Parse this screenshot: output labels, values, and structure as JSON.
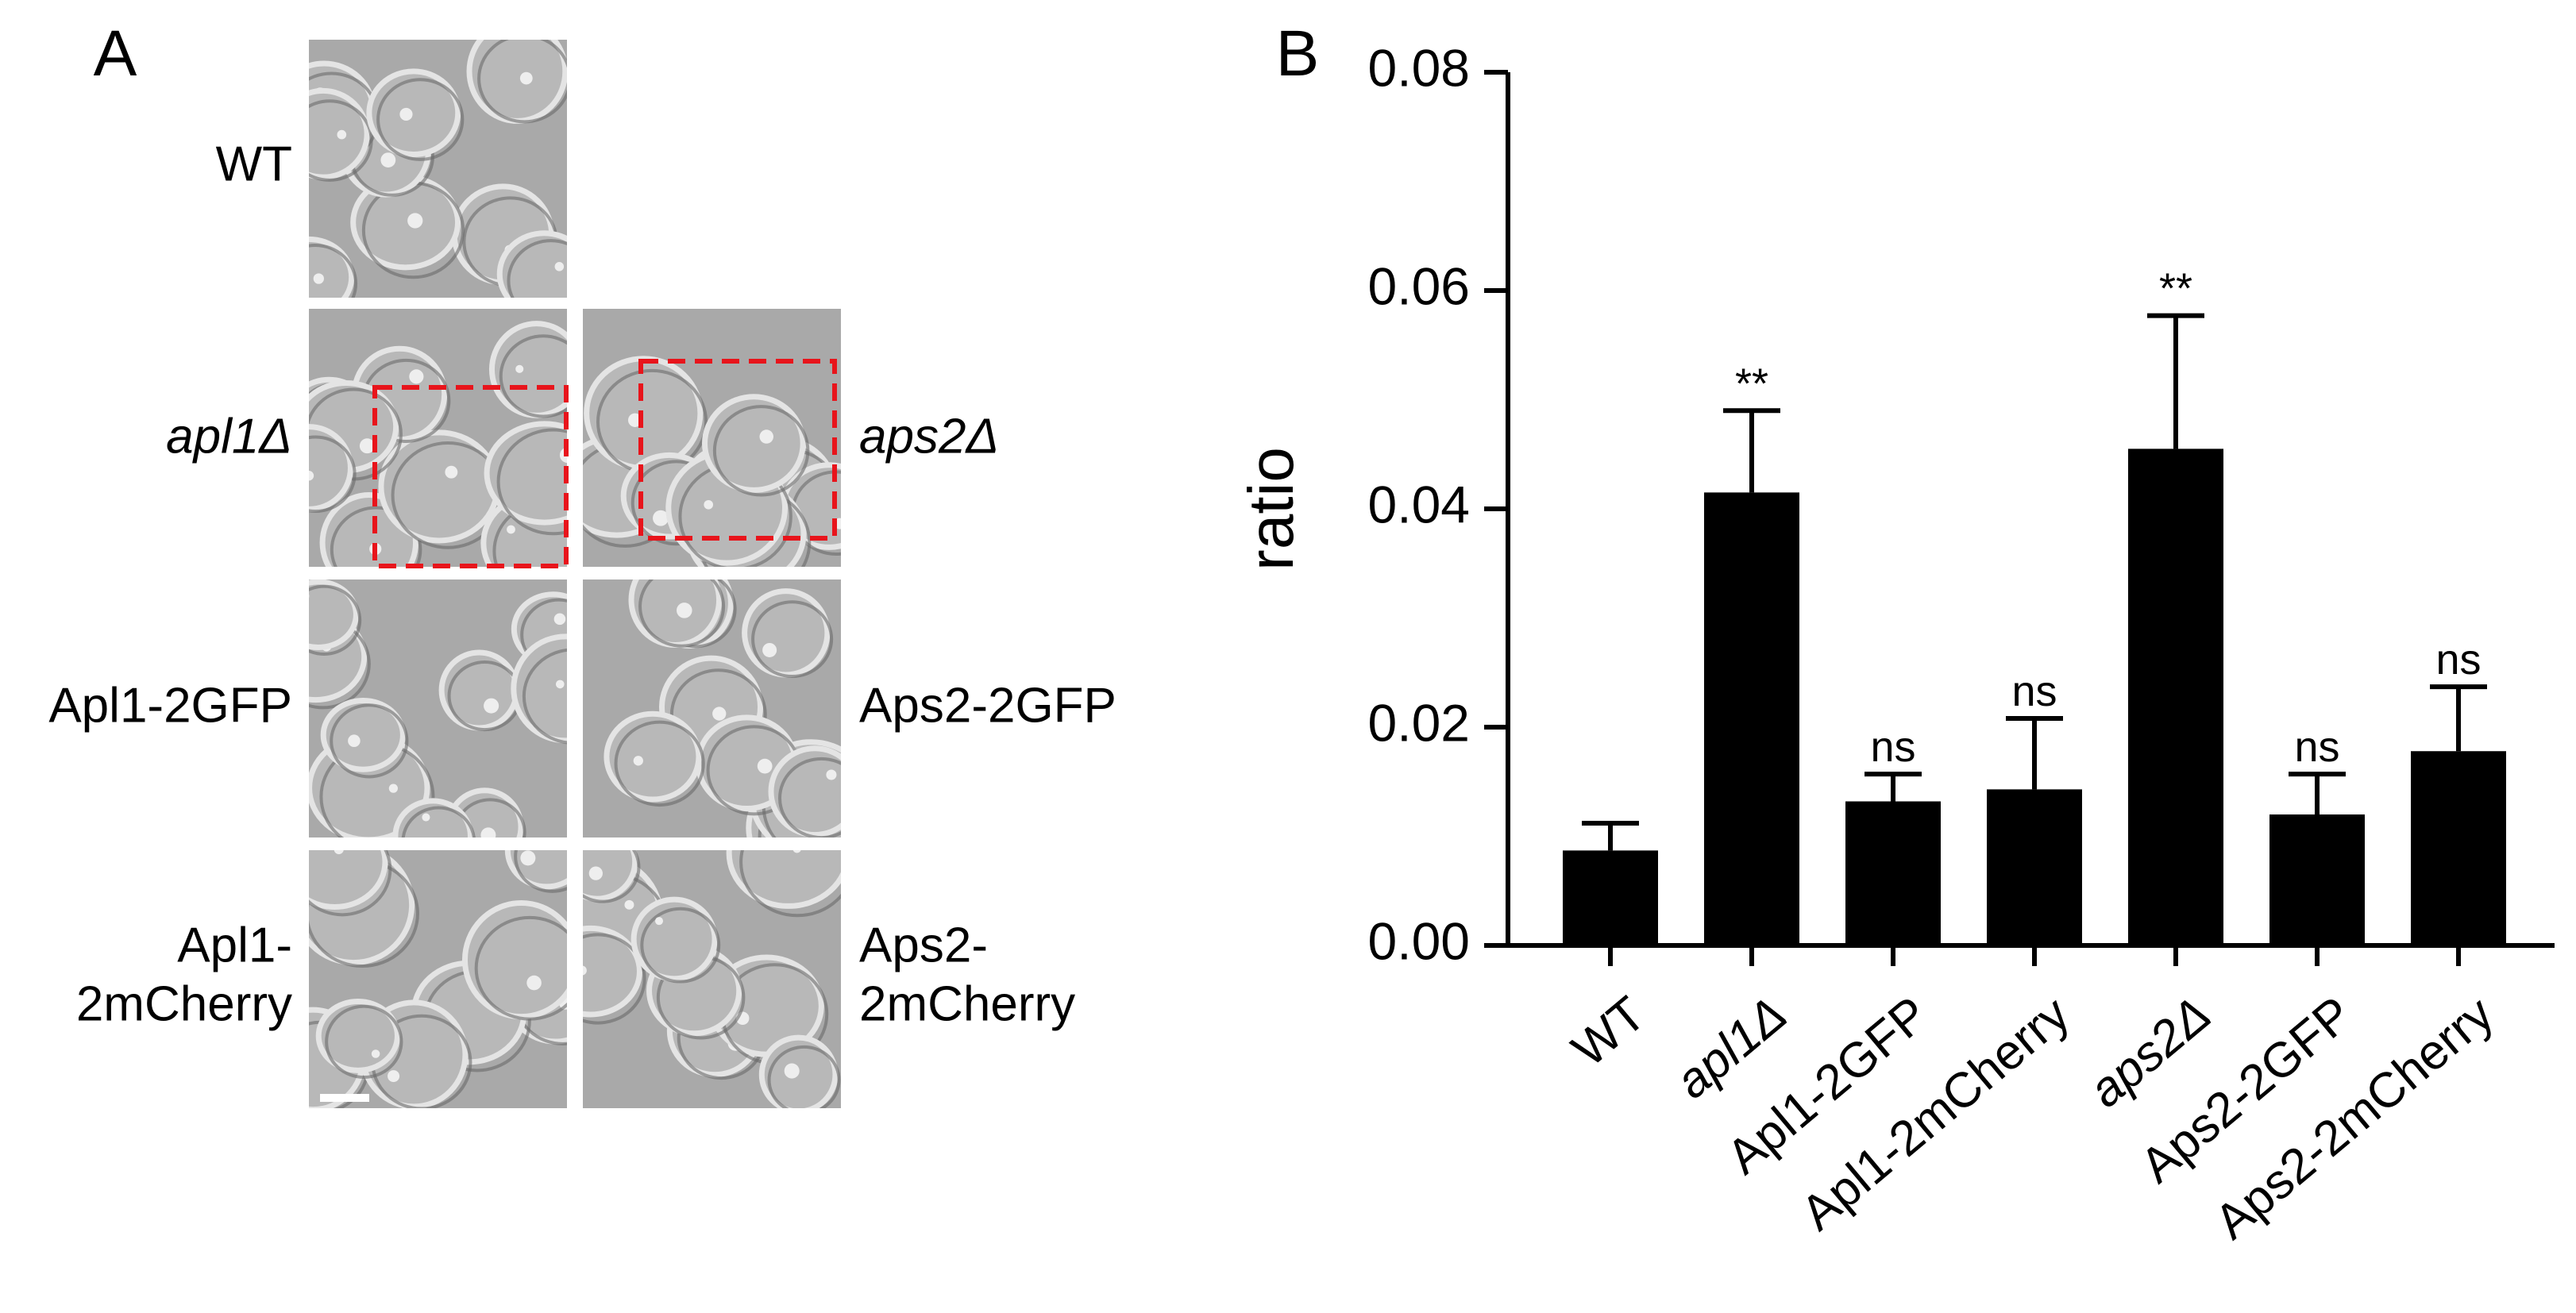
{
  "panel_a": {
    "label": "A",
    "images": [
      {
        "label": "WT"
      },
      {
        "label": "apl1Δ"
      },
      {
        "label": "aps2Δ"
      },
      {
        "label": "Apl1-2GFP"
      },
      {
        "label": "Aps2-2GFP"
      },
      {
        "label": [
          "Apl1-",
          "2mCherry"
        ]
      },
      {
        "label": [
          "Aps2-",
          "2mCherry"
        ]
      }
    ]
  },
  "chart_data": {
    "type": "bar",
    "panel_label": "B",
    "y_label": "ratio",
    "categories": [
      "WT",
      "apl1Δ",
      "Apl1-2GFP",
      "Apl1-2mCherry",
      "aps2Δ",
      "Aps2-2GFP",
      "Aps2-2mCherry"
    ],
    "category_font_style": [
      "normal",
      "italic",
      "normal",
      "normal",
      "italic",
      "normal",
      "normal"
    ],
    "values": [
      0.0087,
      0.0415,
      0.0132,
      0.0143,
      0.0455,
      0.012,
      0.0178
    ],
    "errors": [
      0.0025,
      0.0075,
      0.0025,
      0.0065,
      0.0122,
      0.0037,
      0.0059
    ],
    "annotations": [
      null,
      "**",
      "ns",
      "ns",
      "**",
      "ns",
      "ns"
    ],
    "color": "#000000",
    "ylim": [
      0,
      0.08
    ],
    "yticks": [
      {
        "value": 0,
        "label": "0.00"
      },
      0.02,
      0.04,
      0.06,
      0.08
    ]
  }
}
